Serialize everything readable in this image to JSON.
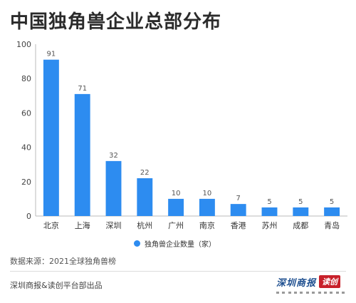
{
  "title": "中国独角兽企业总部分布",
  "chart_data": {
    "type": "bar",
    "title": "中国独角兽企业总部分布",
    "xlabel": "",
    "ylabel": "",
    "categories": [
      "北京",
      "上海",
      "深圳",
      "杭州",
      "广州",
      "南京",
      "香港",
      "苏州",
      "成都",
      "青岛"
    ],
    "series": [
      {
        "name": "独角兽企业数量（家）",
        "values": [
          91,
          71,
          32,
          22,
          10,
          10,
          7,
          5,
          5,
          5
        ],
        "color": "#2d8cf0"
      }
    ],
    "ylim": [
      0,
      100
    ],
    "yticks": [
      0,
      20,
      40,
      60,
      80,
      100
    ],
    "grid": false,
    "legend_position": "bottom"
  },
  "legend": {
    "label": "独角兽企业数量（家）",
    "color": "#2d8cf0"
  },
  "source_text": "数据来源：2021全球独角兽榜",
  "publisher_text": "深圳商报&读创平台部出品",
  "logo": {
    "text": "深圳商报",
    "badge": "读创"
  }
}
